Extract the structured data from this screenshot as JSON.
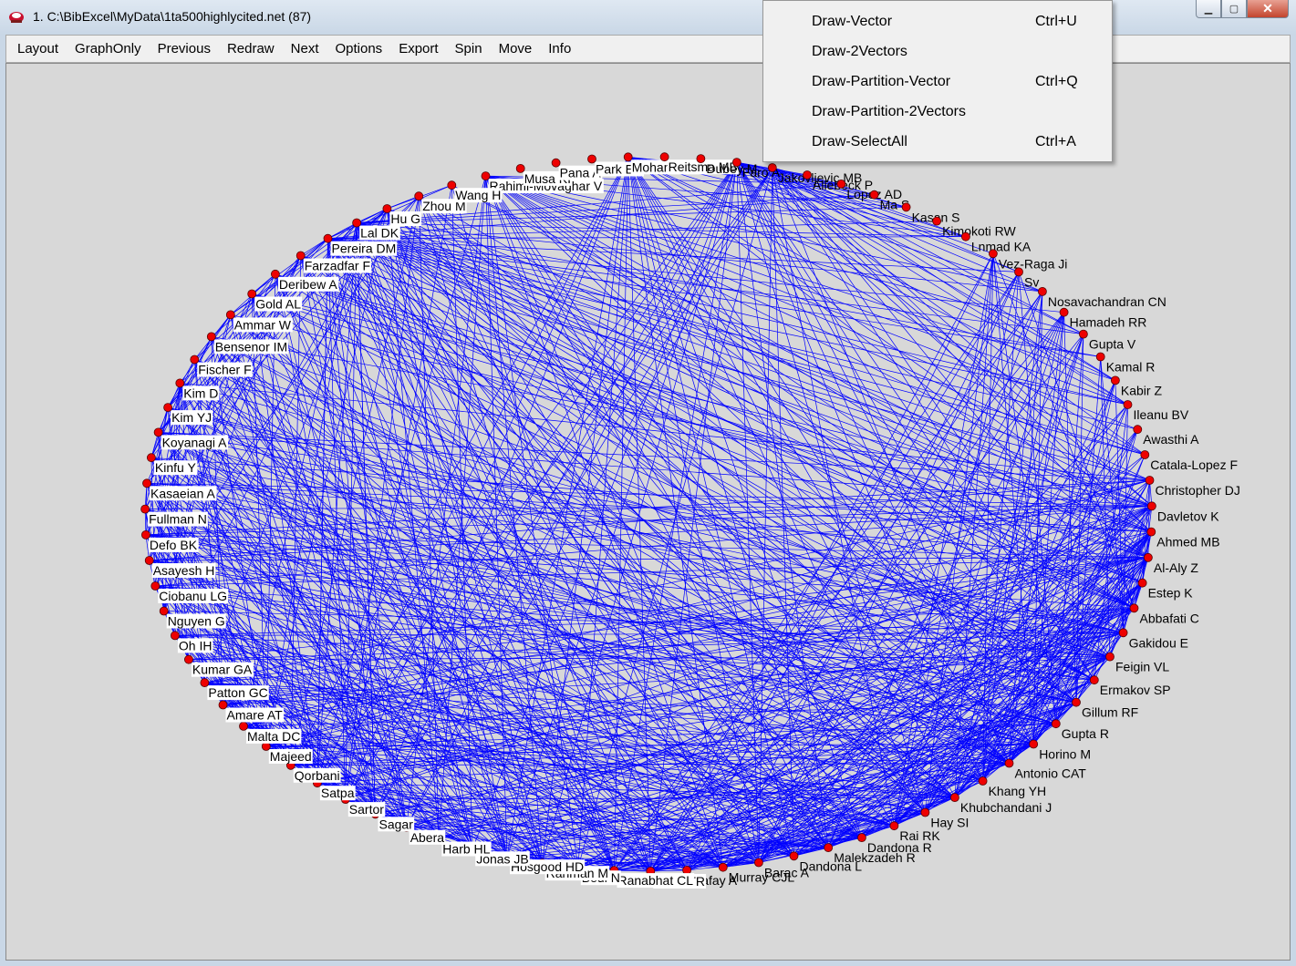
{
  "window": {
    "title": "1. C:\\BibExcel\\MyData\\1ta500highlycited.net (87)",
    "minimize_glyph": "▁",
    "maximize_glyph": "▢",
    "close_glyph": "✕"
  },
  "menu": [
    "Layout",
    "GraphOnly",
    "Previous",
    "Redraw",
    "Next",
    "Options",
    "Export",
    "Spin",
    "Move",
    "Info"
  ],
  "popup_menu": [
    {
      "label": "Draw-Vector",
      "shortcut": "Ctrl+U"
    },
    {
      "label": "Draw-2Vectors",
      "shortcut": ""
    },
    {
      "label": "Draw-Partition-Vector",
      "shortcut": "Ctrl+Q"
    },
    {
      "label": "Draw-Partition-2Vectors",
      "shortcut": ""
    },
    {
      "label": "Draw-SelectAll",
      "shortcut": "Ctrl+A"
    }
  ],
  "colors": {
    "edge": "#0000ff",
    "node": "#ee0000",
    "node_stroke": "#550000",
    "label_bg": "#ffffff"
  },
  "graph": {
    "node_count": 87,
    "labels": [
      "Rahimi-Movaghar V",
      "Musa KI",
      "Pana A",
      "Park EK",
      "Mohammed S",
      "Reitsma MB",
      "Dubey M",
      "Faro A",
      "Jakovljevic MB",
      "Allebeck P",
      "Lopez AD",
      "Ma S",
      "Kasan S",
      "Kimokoti RW",
      "Lnmad KA",
      "Vez-Raga Ji",
      "Sv",
      "Nosavachandran CN",
      "Hamadeh RR",
      "Gupta V",
      "Kamal R",
      "Kabir Z",
      "Ileanu BV",
      "Awasthi A",
      "Catala-Lopez F",
      "Christopher DJ",
      "Davletov K",
      "Ahmed MB",
      "Al-Aly Z",
      "Estep K",
      "Abbafati C",
      "Gakidou E",
      "Feigin VL",
      "Ermakov SP",
      "Gillum RF",
      "Gupta R",
      "Horino M",
      "Antonio CAT",
      "Khang YH",
      "Khubchandani J",
      "Hay SI",
      "Rai RK",
      "Dandona R",
      "Malekzadeh R",
      "Dandona L",
      "Barac A",
      "Murray CJL",
      "Rafay A",
      "Miller TR",
      "Ranabhat CL",
      "Bedi N",
      "Rahman M",
      "Hosgood HD",
      "Jonas JB",
      "Harb HL",
      "Abera",
      "Sagar",
      "Sartor",
      "Satpa",
      "Qorbani",
      "Majeed",
      "Malta DC",
      "Amare AT",
      "Patton GC",
      "Kumar GA",
      "Oh IH",
      "Nguyen G",
      "Ciobanu LG",
      "Asayesh H",
      "Defo BK",
      "Fullman N",
      "Kasaeian A",
      "Kinfu Y",
      "Koyanagi A",
      "Kim YJ",
      "Kim D",
      "Fischer F",
      "Bensenor IM",
      "Ammar W",
      "Gold AL",
      "Deribew A",
      "Farzadfar F",
      "Pereira DM",
      "Lal DK",
      "Hu G",
      "Zhou M",
      "Wang H"
    ]
  }
}
